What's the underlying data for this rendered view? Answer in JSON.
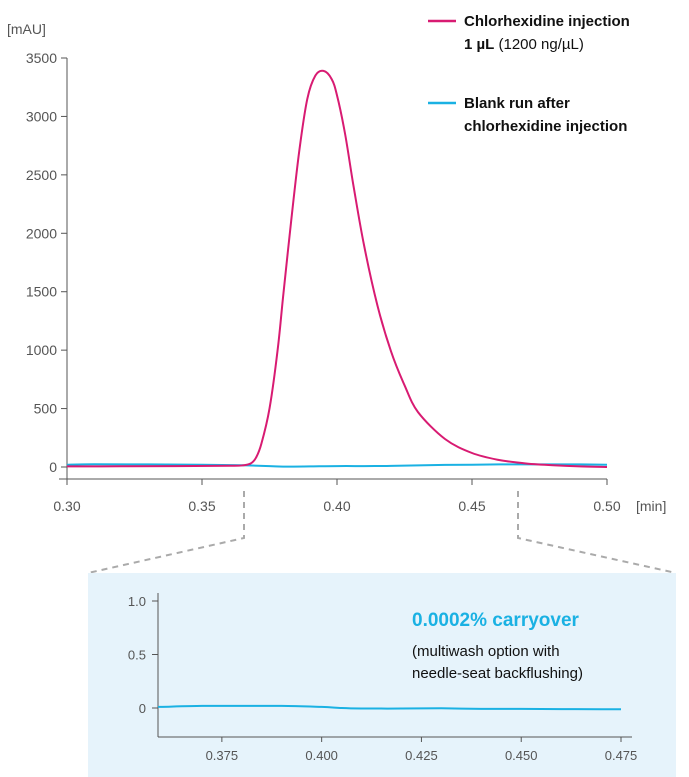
{
  "colors": {
    "injection": "#d81b72",
    "blank": "#1ab1e3",
    "inset_bg": "#e6f3fb",
    "axis": "#555555",
    "connector": "#aaaaaa"
  },
  "chart_data": [
    {
      "type": "line",
      "ylabel": "[mAU]",
      "xlabel": "[min]",
      "xlim": [
        0.3,
        0.5
      ],
      "ylim": [
        0,
        3500
      ],
      "x_ticks": [
        "0.30",
        "0.35",
        "0.40",
        "0.45",
        "0.50"
      ],
      "y_ticks": [
        "0",
        "500",
        "1000",
        "1500",
        "2000",
        "2500",
        "3000",
        "3500"
      ],
      "grid": false,
      "legend_position": "top-right",
      "legend": [
        {
          "line1_bold": "Chlorhexidine injection",
          "line2_bold": "1 µL",
          "line2_normal": " (1200 ng/µL)"
        },
        {
          "line1_bold": "Blank run after",
          "line2_bold": "chlorhexidine injection"
        }
      ],
      "series": [
        {
          "x": [
            0.3,
            0.32,
            0.34,
            0.36,
            0.365,
            0.368,
            0.37,
            0.372,
            0.375,
            0.378,
            0.38,
            0.383,
            0.386,
            0.389,
            0.392,
            0.395,
            0.398,
            0.4,
            0.403,
            0.406,
            0.41,
            0.415,
            0.42,
            0.425,
            0.43,
            0.44,
            0.45,
            0.46,
            0.47,
            0.48,
            0.49,
            0.5
          ],
          "y": [
            5,
            6,
            8,
            10,
            14,
            30,
            80,
            200,
            500,
            1000,
            1450,
            2100,
            2700,
            3150,
            3350,
            3390,
            3320,
            3180,
            2850,
            2420,
            1900,
            1380,
            990,
            700,
            470,
            240,
            120,
            60,
            30,
            15,
            5,
            0
          ]
        },
        {
          "x": [
            0.3,
            0.31,
            0.33,
            0.35,
            0.365,
            0.375,
            0.38,
            0.39,
            0.4,
            0.41,
            0.42,
            0.43,
            0.44,
            0.45,
            0.46,
            0.47,
            0.48,
            0.49,
            0.5
          ],
          "y": [
            20,
            24,
            22,
            20,
            15,
            8,
            3,
            5,
            8,
            8,
            9,
            14,
            18,
            20,
            22,
            22,
            22,
            22,
            20
          ]
        }
      ]
    },
    {
      "type": "line",
      "xlim": [
        0.359,
        0.476
      ],
      "ylim": [
        0,
        1.0
      ],
      "x_ticks": [
        "0.375",
        "0.400",
        "0.425",
        "0.450",
        "0.475"
      ],
      "y_ticks": [
        "0",
        "0.5",
        "1.0"
      ],
      "grid": false,
      "annotation_title": "0.0002% carryover",
      "annotation_lines": [
        "(multiwash option with",
        "needle-seat backflushing)"
      ],
      "series": [
        {
          "x": [
            0.359,
            0.37,
            0.38,
            0.39,
            0.4,
            0.405,
            0.41,
            0.42,
            0.43,
            0.44,
            0.45,
            0.46,
            0.47,
            0.475
          ],
          "y": [
            0.01,
            0.02,
            0.02,
            0.02,
            0.01,
            0.0,
            -0.005,
            -0.005,
            -0.003,
            -0.008,
            -0.008,
            -0.01,
            -0.012,
            -0.012
          ]
        }
      ]
    }
  ]
}
